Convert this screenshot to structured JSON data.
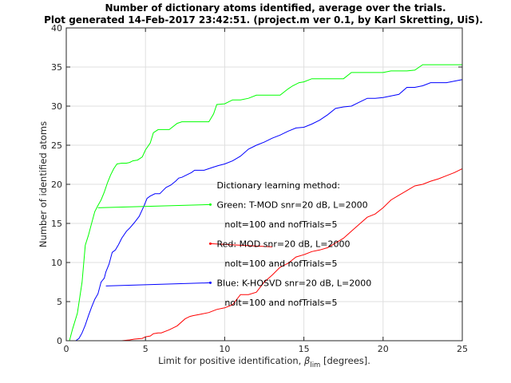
{
  "chart_data": {
    "type": "line",
    "title": "Number of dictionary atoms identified, average over the trials.",
    "subtitle": "Plot generated 14-Feb-2017 23:42:51. (project.m ver 0.1, by Karl Skretting, UiS).",
    "xlabel": {
      "main": "Limit for positive identification, ",
      "beta": "β",
      "sub": "lim",
      "tail": " [degrees]."
    },
    "ylabel": "Number of identified atoms",
    "xlim": [
      0,
      25
    ],
    "ylim": [
      0,
      40
    ],
    "xticks": [
      "0",
      "5",
      "10",
      "15",
      "20",
      "25"
    ],
    "yticks": [
      "0",
      "5",
      "10",
      "15",
      "20",
      "25",
      "30",
      "35",
      "40"
    ],
    "grid": true,
    "annotations": [
      {
        "text": "Dictionary learning method:",
        "x": 9.5,
        "y": 19.5
      },
      {
        "text": "Green: T-MOD snr=20 dB, L=2000",
        "x": 9.5,
        "y": 17.0,
        "arrow_to": [
          2,
          17.0
        ],
        "color": "#00ff00"
      },
      {
        "text": "noIt=100 and nofTrials=5",
        "x": 10.0,
        "y": 14.5
      },
      {
        "text": "Red: MOD snr=20 dB, L=2000",
        "x": 9.5,
        "y": 12.0,
        "arrow_to": [
          13,
          12.0
        ],
        "color": "#ff0000"
      },
      {
        "text": "noIt=100 and nofTrials=5",
        "x": 10.0,
        "y": 9.5
      },
      {
        "text": "Blue: K-HOSVD snr=20 dB, L=2000",
        "x": 9.5,
        "y": 7.0,
        "arrow_to": [
          2.5,
          7.0
        ],
        "color": "#0000ff"
      },
      {
        "text": "noIt=100 and nofTrials=5",
        "x": 10.0,
        "y": 4.5
      }
    ],
    "series": [
      {
        "color": "#00ff00",
        "x": [
          0.2,
          0.4,
          0.7,
          1.0,
          1.2,
          1.4,
          1.6,
          1.8,
          2.0,
          2.2,
          2.4,
          2.6,
          2.8,
          3.0,
          3.2,
          3.5,
          3.8,
          4.0,
          4.2,
          4.5,
          4.8,
          5.0,
          5.3,
          5.5,
          5.8,
          6.0,
          6.5,
          7.0,
          7.3,
          7.5,
          8.0,
          8.5,
          9.0,
          9.3,
          9.5,
          10.0,
          10.5,
          11.0,
          11.5,
          12.0,
          12.5,
          13.0,
          13.5,
          14.0,
          14.3,
          14.7,
          15.0,
          15.5,
          16.0,
          16.5,
          17.0,
          17.5,
          18.0,
          18.5,
          19.0,
          19.5,
          20.0,
          20.5,
          21.0,
          21.5,
          22.0,
          22.5,
          23.0,
          24.0,
          25.0
        ],
        "y": [
          0,
          1.5,
          3.5,
          7.5,
          12.2,
          13.5,
          15.0,
          16.5,
          17.3,
          18.0,
          19.0,
          20.2,
          21.2,
          22.0,
          22.6,
          22.7,
          22.7,
          22.8,
          23.0,
          23.1,
          23.5,
          24.4,
          25.3,
          26.6,
          27.0,
          27.0,
          27.0,
          27.8,
          28.0,
          28.0,
          28.0,
          28.0,
          28.0,
          29.0,
          30.2,
          30.3,
          30.8,
          30.8,
          31.0,
          31.4,
          31.4,
          31.4,
          31.4,
          32.2,
          32.6,
          33.0,
          33.1,
          33.5,
          33.5,
          33.5,
          33.5,
          33.5,
          34.3,
          34.3,
          34.3,
          34.3,
          34.3,
          34.5,
          34.5,
          34.5,
          34.6,
          35.3,
          35.3,
          35.3,
          35.3
        ]
      },
      {
        "color": "#ff0000",
        "x": [
          0,
          3.5,
          4.0,
          4.3,
          4.8,
          5.0,
          5.3,
          5.5,
          5.8,
          6.0,
          6.5,
          7.0,
          7.5,
          7.8,
          8.0,
          8.5,
          9.0,
          9.5,
          10.0,
          10.5,
          11.0,
          11.5,
          12.0,
          12.5,
          13.0,
          13.5,
          14.0,
          14.5,
          15.0,
          15.5,
          16.0,
          16.5,
          17.0,
          17.5,
          18.0,
          18.5,
          19.0,
          19.5,
          20.0,
          20.5,
          21.0,
          21.5,
          22.0,
          22.5,
          23.0,
          23.5,
          24.0,
          24.5,
          25.0
        ],
        "y": [
          0,
          0,
          0.1,
          0.2,
          0.3,
          0.5,
          0.6,
          0.9,
          1.0,
          1.0,
          1.4,
          1.9,
          2.8,
          3.1,
          3.2,
          3.4,
          3.6,
          4.0,
          4.2,
          4.6,
          5.9,
          5.9,
          6.2,
          7.5,
          8.4,
          9.4,
          9.9,
          10.7,
          11.0,
          11.4,
          11.6,
          11.9,
          12.5,
          13.1,
          14.0,
          14.9,
          15.8,
          16.2,
          17.0,
          18.0,
          18.6,
          19.2,
          19.8,
          20.0,
          20.4,
          20.7,
          21.1,
          21.5,
          22.0
        ]
      },
      {
        "color": "#0000ff",
        "x": [
          0.6,
          0.8,
          1.0,
          1.2,
          1.4,
          1.6,
          1.8,
          2.0,
          2.2,
          2.4,
          2.5,
          2.7,
          2.9,
          3.1,
          3.3,
          3.5,
          3.8,
          4.0,
          4.3,
          4.6,
          4.9,
          5.1,
          5.3,
          5.6,
          5.9,
          6.1,
          6.3,
          6.6,
          6.9,
          7.1,
          7.3,
          7.6,
          7.9,
          8.1,
          8.4,
          8.7,
          9.0,
          9.3,
          9.6,
          10.0,
          10.5,
          11.0,
          11.5,
          12.0,
          12.5,
          13.0,
          13.5,
          14.0,
          14.5,
          15.0,
          15.5,
          16.0,
          16.5,
          17.0,
          17.5,
          18.0,
          18.5,
          19.0,
          19.5,
          20.0,
          20.5,
          21.0,
          21.5,
          22.0,
          22.5,
          23.0,
          24.0,
          25.0
        ],
        "y": [
          0,
          0.3,
          1.0,
          2.0,
          3.2,
          4.3,
          5.3,
          6.0,
          7.5,
          8.0,
          8.8,
          9.8,
          11.3,
          11.6,
          12.3,
          13.1,
          14.0,
          14.4,
          15.1,
          15.9,
          17.2,
          18.2,
          18.5,
          18.8,
          18.8,
          19.2,
          19.6,
          19.9,
          20.4,
          20.8,
          20.9,
          21.2,
          21.5,
          21.8,
          21.8,
          21.8,
          22.0,
          22.2,
          22.4,
          22.6,
          23.0,
          23.6,
          24.5,
          25.0,
          25.4,
          25.9,
          26.3,
          26.8,
          27.2,
          27.3,
          27.7,
          28.2,
          28.9,
          29.7,
          29.9,
          30.0,
          30.5,
          31.0,
          31.0,
          31.1,
          31.3,
          31.5,
          32.4,
          32.4,
          32.6,
          33.0,
          33.0,
          33.4
        ]
      }
    ]
  }
}
